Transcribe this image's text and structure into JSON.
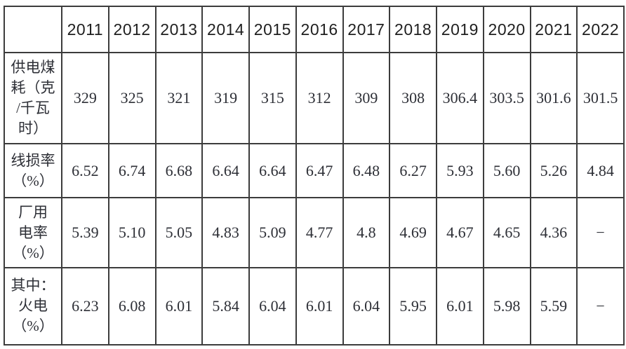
{
  "table": {
    "corner_label": "",
    "years": [
      "2011",
      "2012",
      "2013",
      "2014",
      "2015",
      "2016",
      "2017",
      "2018",
      "2019",
      "2020",
      "2021",
      "2022"
    ],
    "rows": [
      {
        "label": "供电煤\n耗（克\n/千瓦\n时）",
        "label_full": "供电煤耗（克/千瓦时）",
        "values": [
          "329",
          "325",
          "321",
          "319",
          "315",
          "312",
          "309",
          "308",
          "306.4",
          "303.5",
          "301.6",
          "301.5"
        ]
      },
      {
        "label": "线损率\n（%）",
        "label_full": "线损率（%）",
        "values": [
          "6.52",
          "6.74",
          "6.68",
          "6.64",
          "6.64",
          "6.47",
          "6.48",
          "6.27",
          "5.93",
          "5.60",
          "5.26",
          "4.84"
        ]
      },
      {
        "label": "厂用\n电率\n（%）",
        "label_full": "厂用电率（%）",
        "values": [
          "5.39",
          "5.10",
          "5.05",
          "4.83",
          "5.09",
          "4.77",
          "4.8",
          "4.69",
          "4.67",
          "4.65",
          "4.36",
          "−"
        ]
      },
      {
        "label": "其中：\n火电\n（%）",
        "label_full": "其中：火电（%）",
        "values": [
          "6.23",
          "6.08",
          "6.01",
          "5.84",
          "6.04",
          "6.01",
          "6.04",
          "5.95",
          "6.01",
          "5.98",
          "5.59",
          "−"
        ]
      }
    ]
  },
  "colors": {
    "border": "#3c3c3c",
    "text": "#2d2f36",
    "header_text": "#1f1f1f",
    "background": "#ffffff"
  }
}
